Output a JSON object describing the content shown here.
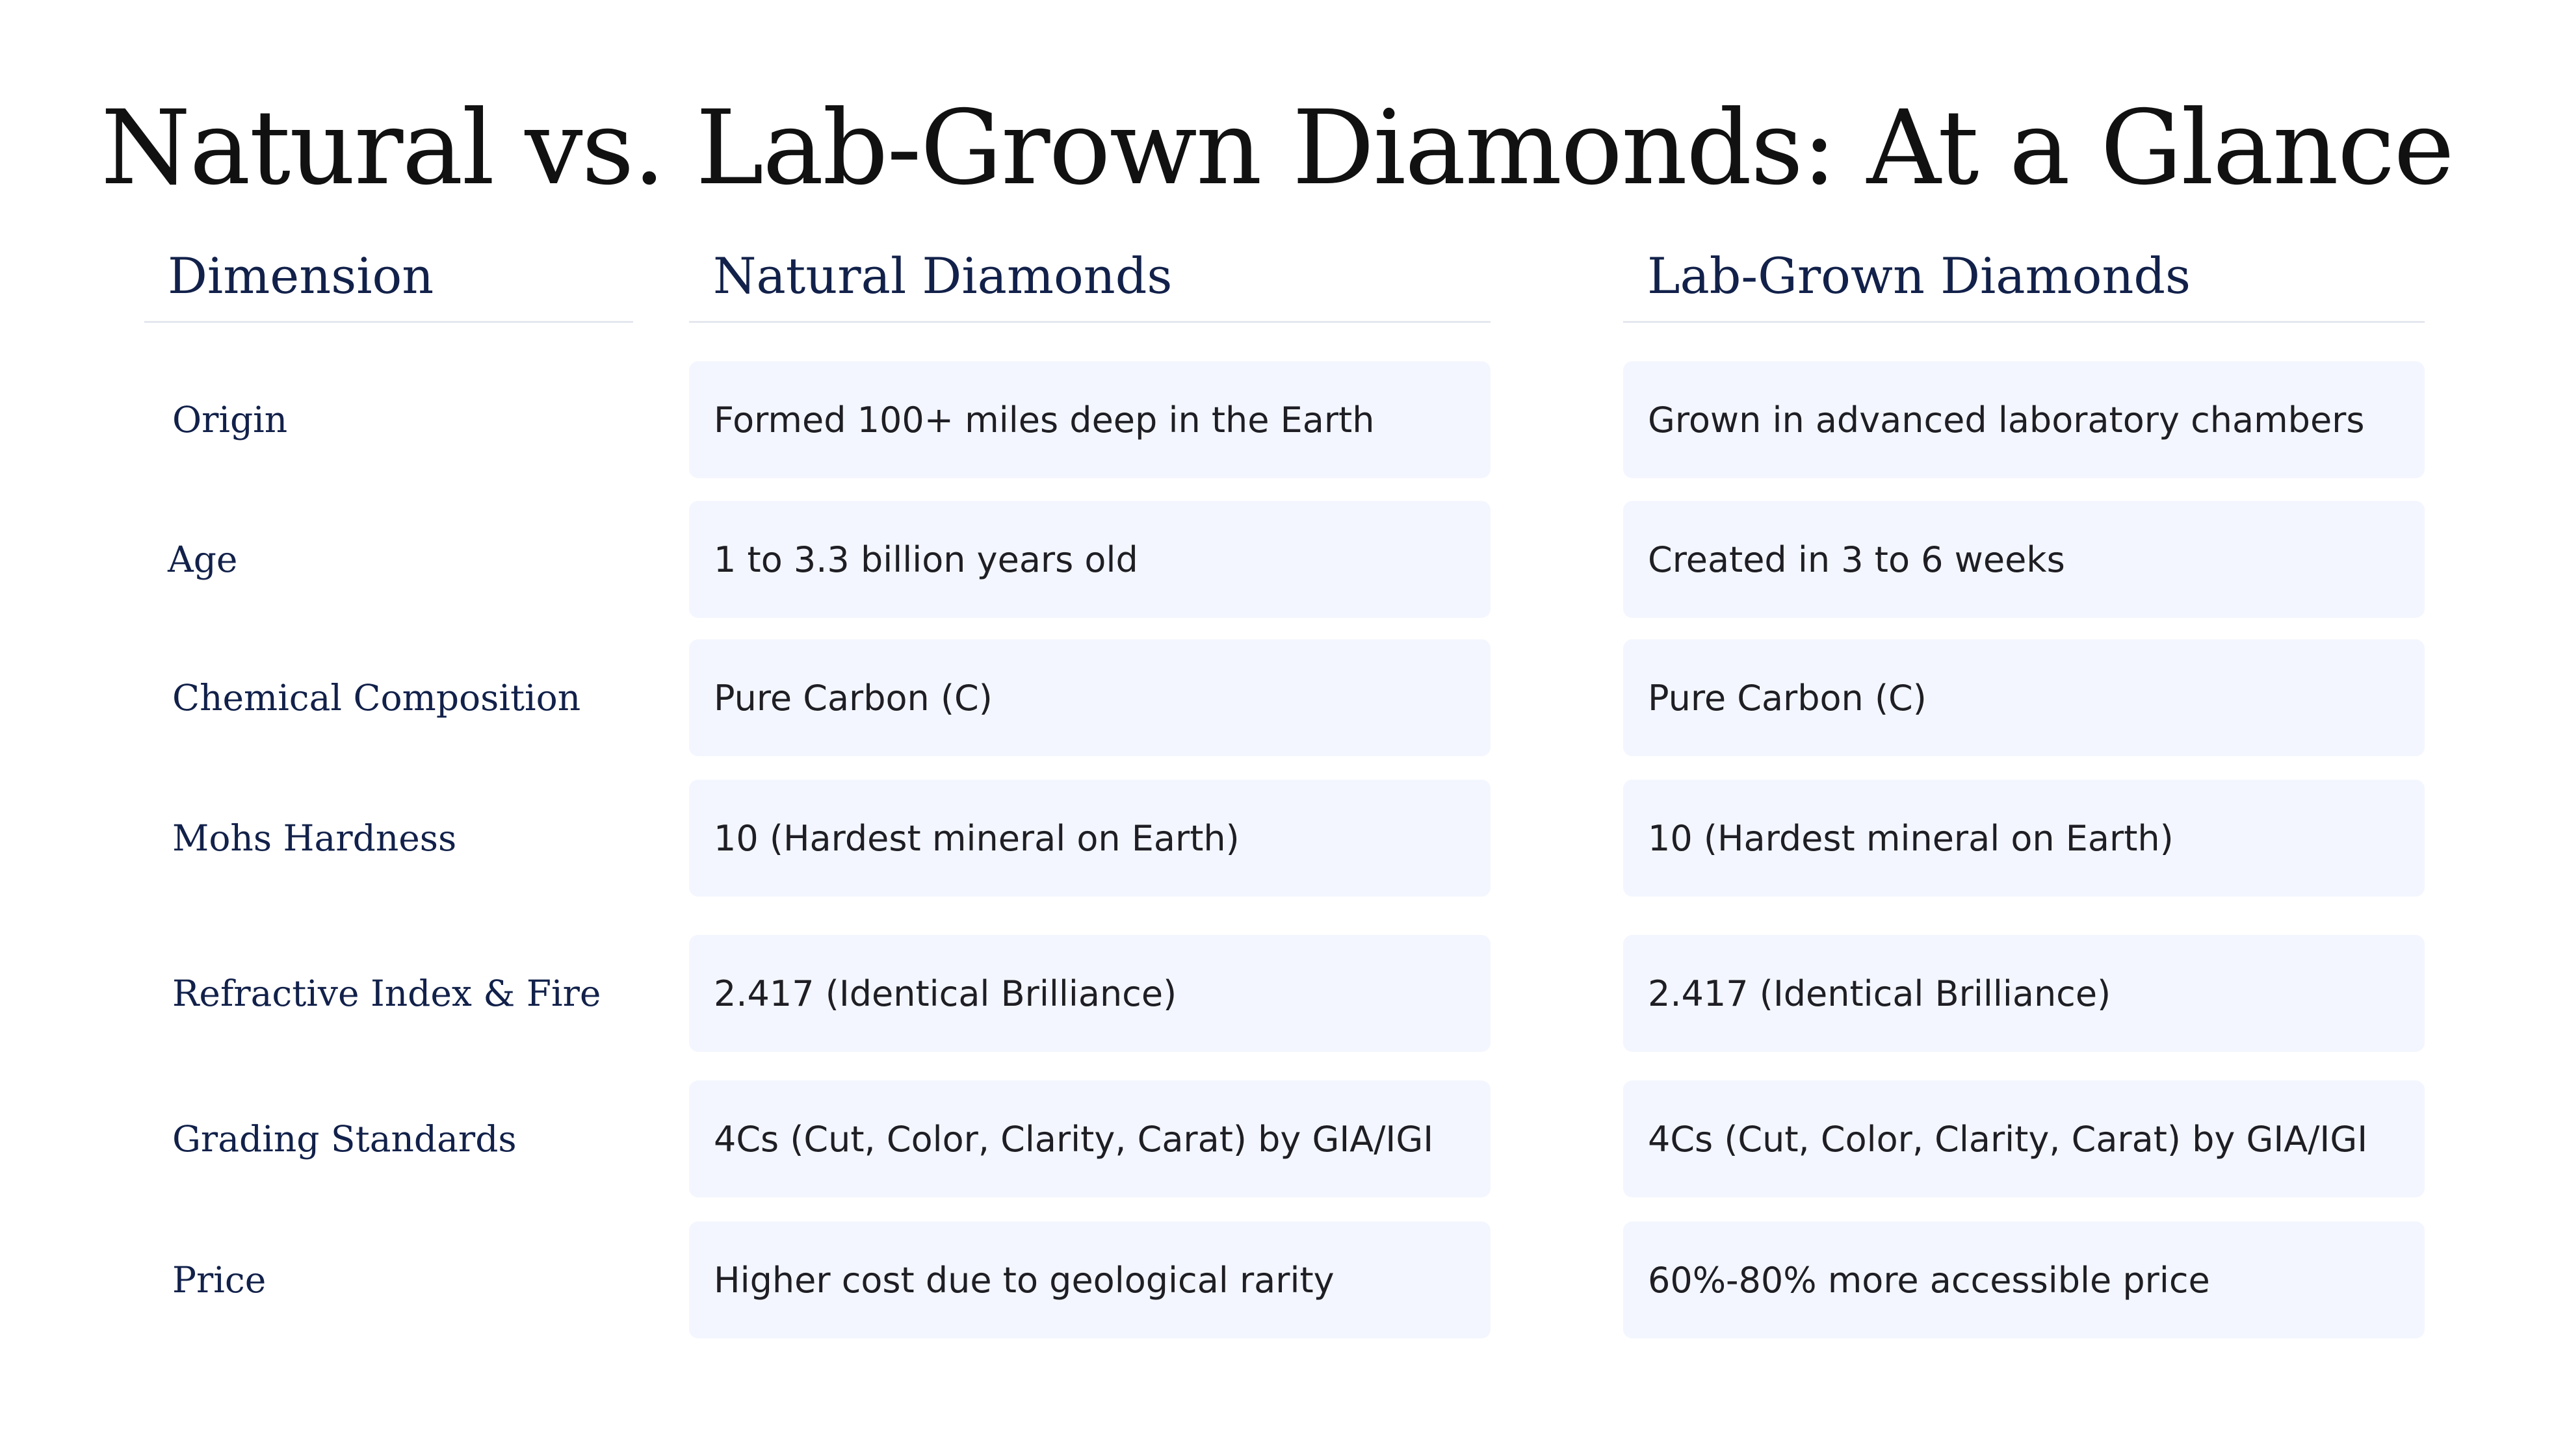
{
  "title": "Natural vs. Lab-Grown Diamonds: At a Glance",
  "headers": {
    "dimension": "Dimension",
    "natural": "Natural Diamonds",
    "lab": "Lab-Grown Diamonds"
  },
  "colors": {
    "heading": "#12214a",
    "cell_background": "#f3f6fe",
    "rule": "#e4e7ee",
    "body_text": "#1e1e24"
  },
  "rows": [
    {
      "dimension": "Origin",
      "natural": "Formed 100+ miles deep in the Earth",
      "lab": "Grown in advanced laboratory chambers"
    },
    {
      "dimension": "Age",
      "natural": "1 to 3.3 billion years old",
      "lab": "Created in 3 to 6 weeks"
    },
    {
      "dimension": "Chemical Composition",
      "natural": "Pure Carbon (C)",
      "lab": "Pure Carbon (C)"
    },
    {
      "dimension": "Mohs Hardness",
      "natural": "10 (Hardest mineral on Earth)",
      "lab": "10 (Hardest mineral on Earth)"
    },
    {
      "dimension": "Refractive Index & Fire",
      "natural": "2.417 (Identical Brilliance)",
      "lab": "2.417 (Identical Brilliance)"
    },
    {
      "dimension": "Grading Standards",
      "natural": "4Cs (Cut, Color, Clarity, Carat) by GIA/IGI",
      "lab": "4Cs (Cut, Color, Clarity, Carat) by GIA/IGI"
    },
    {
      "dimension": "Price",
      "natural": "Higher cost due to geological rarity",
      "lab": "60%-80% more accessible price"
    }
  ]
}
